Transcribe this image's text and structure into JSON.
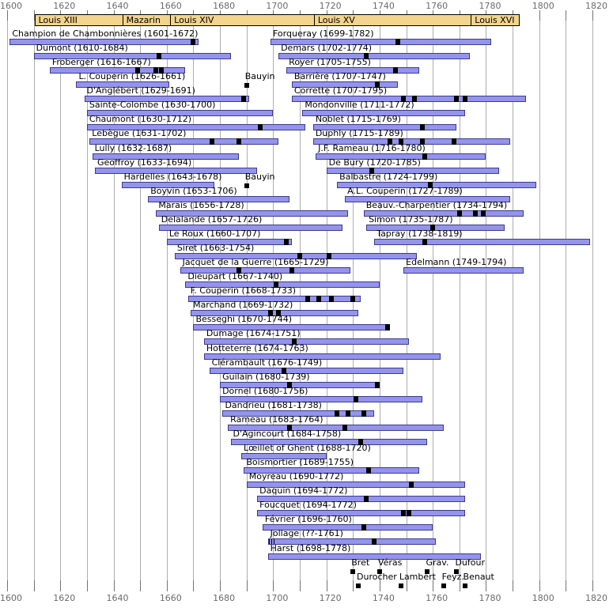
{
  "colors": {
    "background": "#ffffff",
    "grid": "#aeaeae",
    "tick": "#737373",
    "axis_text": "#6b6b6b",
    "reign_fill": "#f2d48c",
    "reign_border": "#000000",
    "lifespan_fill": "#9494ed",
    "lifespan_border": "#3c3c8f",
    "marker": "#000000",
    "label_text": "#000000"
  },
  "chart_data": {
    "type": "bar",
    "subtype": "lifespan-timeline-gantt",
    "xlabel": "year",
    "xlim": [
      1600,
      1820
    ],
    "grid": "on",
    "x_axis": {
      "min": 1600,
      "max": 1820,
      "minor_tick_step": 10,
      "label_step": 20,
      "labels": [
        "1600",
        "1620",
        "1640",
        "1660",
        "1680",
        "1700",
        "1720",
        "1740",
        "1760",
        "1780",
        "1800",
        "1820"
      ],
      "shown_top_and_bottom": true
    },
    "reigns": [
      {
        "label": "Louis XIII",
        "start": 1610,
        "end": 1643
      },
      {
        "label": "Mazarin",
        "start": 1643,
        "end": 1661
      },
      {
        "label": "Louis XIV",
        "start": 1661,
        "end": 1715
      },
      {
        "label": "Louis XV",
        "start": 1715,
        "end": 1774
      },
      {
        "label": "Louis XVI",
        "start": 1774,
        "end": 1792
      }
    ],
    "composers": [
      {
        "label": "Champion de Chambonnières (1601-1672)",
        "start": 1601,
        "end": 1672,
        "row": 1,
        "column": "left",
        "marks": [
          1670
        ]
      },
      {
        "label": "Dumont (1610-1684)",
        "start": 1610,
        "end": 1684,
        "row": 2,
        "column": "left",
        "marks": [
          1657
        ]
      },
      {
        "label": "Froberger (1616-1667)",
        "start": 1616,
        "end": 1667,
        "row": 3,
        "column": "left",
        "marks": [
          1649,
          1656,
          1658
        ]
      },
      {
        "label": "L. Couperin (1626-1661)",
        "start": 1626,
        "end": 1661,
        "row": 4,
        "column": "left",
        "marks": []
      },
      {
        "label": "D'Anglébert (1629-1691)",
        "start": 1629,
        "end": 1691,
        "row": 5,
        "column": "left",
        "marks": [
          1689
        ]
      },
      {
        "label": "Sainte-Colombe (1630-1700)",
        "start": 1630,
        "end": 1700,
        "row": 6,
        "column": "left",
        "marks": []
      },
      {
        "label": "Chaumont (1630-1712)",
        "start": 1630,
        "end": 1712,
        "row": 7,
        "column": "left",
        "marks": [
          1695
        ]
      },
      {
        "label": "Lebègue (1631-1702)",
        "start": 1631,
        "end": 1702,
        "row": 8,
        "column": "left",
        "marks": [
          1677,
          1687
        ]
      },
      {
        "label": "Lully (1632-1687)",
        "start": 1632,
        "end": 1687,
        "row": 9,
        "column": "left",
        "marks": []
      },
      {
        "label": "Geoffroy (1633-1694)",
        "start": 1633,
        "end": 1694,
        "row": 10,
        "column": "left",
        "marks": []
      },
      {
        "label": "Hardelles (1643-1678)",
        "start": 1643,
        "end": 1678,
        "row": 11,
        "column": "left",
        "marks": []
      },
      {
        "label": "Boyvin (1653-1706)",
        "start": 1653,
        "end": 1706,
        "row": 12,
        "column": "left",
        "marks": []
      },
      {
        "label": "Marais (1656-1728)",
        "start": 1656,
        "end": 1728,
        "row": 13,
        "column": "left",
        "marks": []
      },
      {
        "label": "Delalande (1657-1726)",
        "start": 1657,
        "end": 1726,
        "row": 14,
        "column": "left",
        "marks": []
      },
      {
        "label": "Le Roux (1660-1707)",
        "start": 1660,
        "end": 1707,
        "row": 15,
        "column": "left",
        "marks": [
          1705
        ]
      },
      {
        "label": "Siret (1663-1754)",
        "start": 1663,
        "end": 1754,
        "row": 16,
        "column": "left",
        "marks": [
          1710,
          1721
        ]
      },
      {
        "label": "Jacquet de la Guerre (1665-1729)",
        "start": 1665,
        "end": 1729,
        "row": 17,
        "column": "left",
        "marks": [
          1687,
          1707
        ]
      },
      {
        "label": "Dieupart (1667-1740)",
        "start": 1667,
        "end": 1740,
        "row": 18,
        "column": "left",
        "marks": [
          1701
        ]
      },
      {
        "label": "F. Couperin (1668-1733)",
        "start": 1668,
        "end": 1733,
        "row": 19,
        "column": "left",
        "marks": [
          1713,
          1717,
          1722,
          1730
        ]
      },
      {
        "label": "Marchand (1669-1732)",
        "start": 1669,
        "end": 1732,
        "row": 20,
        "column": "left",
        "marks": [
          1699,
          1702
        ]
      },
      {
        "label": "Besseghi (1670-1744)",
        "start": 1670,
        "end": 1744,
        "row": 21,
        "column": "left",
        "marks": [
          1743
        ]
      },
      {
        "label": "Dumage (1674-1751)",
        "start": 1674,
        "end": 1751,
        "row": 22,
        "column": "left",
        "marks": [
          1708
        ]
      },
      {
        "label": "Hotteterre (1674-1763)",
        "start": 1674,
        "end": 1763,
        "row": 23,
        "column": "left",
        "marks": []
      },
      {
        "label": "Clérambault (1676-1749)",
        "start": 1676,
        "end": 1749,
        "row": 24,
        "column": "left",
        "marks": [
          1704
        ]
      },
      {
        "label": "Guilain (1680-1739)",
        "start": 1680,
        "end": 1739,
        "row": 25,
        "column": "left",
        "marks": [
          1706,
          1739
        ]
      },
      {
        "label": "Dornel (1680-1756)",
        "start": 1680,
        "end": 1756,
        "row": 26,
        "column": "left",
        "marks": [
          1731
        ]
      },
      {
        "label": "Dandrieu (1681-1738)",
        "start": 1681,
        "end": 1738,
        "row": 27,
        "column": "left",
        "marks": [
          1724,
          1728,
          1734
        ]
      },
      {
        "label": "Rameau (1683-1764)",
        "start": 1683,
        "end": 1764,
        "row": 28,
        "column": "left",
        "marks": [
          1706,
          1727
        ]
      },
      {
        "label": "D'Agincourt (1684-1758)",
        "start": 1684,
        "end": 1758,
        "row": 29,
        "column": "left",
        "marks": [
          1733
        ]
      },
      {
        "label": "Lœillet of Ghent (1688-1720)",
        "start": 1688,
        "end": 1720,
        "row": 30,
        "column": "left",
        "marks": []
      },
      {
        "label": "Boismortier (1689-1755)",
        "start": 1689,
        "end": 1755,
        "row": 31,
        "column": "left",
        "marks": [
          1736
        ]
      },
      {
        "label": "Moyreau (1690-1772)",
        "start": 1690,
        "end": 1772,
        "row": 32,
        "column": "left",
        "marks": [
          1752
        ]
      },
      {
        "label": "Daquin (1694-1772)",
        "start": 1694,
        "end": 1772,
        "row": 33,
        "column": "left",
        "marks": [
          1735
        ]
      },
      {
        "label": "Foucquet (1694-1772)",
        "start": 1694,
        "end": 1772,
        "row": 34,
        "column": "left",
        "marks": [
          1749,
          1751
        ]
      },
      {
        "label": "Février (1696-1760)",
        "start": 1696,
        "end": 1760,
        "row": 35,
        "column": "left",
        "marks": [
          1734
        ]
      },
      {
        "label": "Jollage (??-1761)",
        "start": 1698,
        "end": 1761,
        "row": 36,
        "column": "left",
        "marks": [
          1738
        ],
        "uncertain_start": true
      },
      {
        "label": "Harst (1698-1778)",
        "start": 1698,
        "end": 1778,
        "row": 37,
        "column": "left",
        "marks": []
      },
      {
        "label": "Forqueray (1699-1782)",
        "start": 1699,
        "end": 1782,
        "row": 1,
        "column": "right",
        "marks": [
          1747
        ]
      },
      {
        "label": "Demars (1702-1774)",
        "start": 1702,
        "end": 1774,
        "row": 2,
        "column": "right",
        "marks": [
          1735
        ]
      },
      {
        "label": "Royer (1705-1755)",
        "start": 1705,
        "end": 1755,
        "row": 3,
        "column": "right",
        "marks": [
          1746
        ]
      },
      {
        "label": "Barrière (1707-1747)",
        "start": 1707,
        "end": 1747,
        "row": 4,
        "column": "right",
        "marks": [
          1739
        ]
      },
      {
        "label": "Corrette (1707-1795)",
        "start": 1707,
        "end": 1795,
        "row": 5,
        "column": "right",
        "marks": [
          1749,
          1753,
          1769,
          1772
        ]
      },
      {
        "label": "Mondonville (1711-1772)",
        "start": 1711,
        "end": 1772,
        "row": 6,
        "column": "right",
        "marks": []
      },
      {
        "label": "Noblet (1715-1769)",
        "start": 1715,
        "end": 1769,
        "row": 7,
        "column": "right",
        "marks": [
          1756
        ]
      },
      {
        "label": "Duphly (1715-1789)",
        "start": 1715,
        "end": 1789,
        "row": 8,
        "column": "right",
        "marks": [
          1744,
          1748,
          1756,
          1768
        ]
      },
      {
        "label": "J.F. Rameau (1716-1780)",
        "start": 1716,
        "end": 1780,
        "row": 9,
        "column": "right",
        "marks": [
          1757
        ]
      },
      {
        "label": "De Bury (1720-1785)",
        "start": 1720,
        "end": 1785,
        "row": 10,
        "column": "right",
        "marks": [
          1737
        ]
      },
      {
        "label": "Balbastre (1724-1799)",
        "start": 1724,
        "end": 1799,
        "row": 11,
        "column": "right",
        "marks": [
          1759
        ]
      },
      {
        "label": "A.L. Couperin (1727-1789)",
        "start": 1727,
        "end": 1789,
        "row": 12,
        "column": "right",
        "marks": []
      },
      {
        "label": "Beauv.-Charpentier (1734-1794)",
        "start": 1734,
        "end": 1794,
        "row": 13,
        "column": "right",
        "marks": [
          1770,
          1776,
          1779
        ]
      },
      {
        "label": "Simon (1735-1787)",
        "start": 1735,
        "end": 1787,
        "row": 14,
        "column": "right",
        "marks": [
          1760
        ]
      },
      {
        "label": "Tapray (1738-1819)",
        "start": 1738,
        "end": 1819,
        "row": 15,
        "column": "right",
        "marks": [
          1757
        ]
      },
      {
        "label": "Edelmann (1749-1794)",
        "start": 1749,
        "end": 1794,
        "row": 17,
        "column": "right",
        "marks": []
      }
    ],
    "annotations": [
      {
        "label": "Bauyin",
        "year": 1690,
        "row": 4
      },
      {
        "label": "Bauyin",
        "year": 1690,
        "row": 11
      },
      {
        "label": "Bret",
        "year": 1730,
        "row": 38
      },
      {
        "label": "Véras",
        "year": 1740,
        "row": 38
      },
      {
        "label": "Grav.",
        "year": 1758,
        "row": 38
      },
      {
        "label": "Dufour",
        "year": 1769,
        "row": 38
      },
      {
        "label": "Durocher",
        "year": 1732,
        "row": 39
      },
      {
        "label": "Lambert",
        "year": 1748,
        "row": 39
      },
      {
        "label": "Feyz.",
        "year": 1764,
        "row": 39
      },
      {
        "label": "Benaut",
        "year": 1772,
        "row": 39
      }
    ]
  }
}
